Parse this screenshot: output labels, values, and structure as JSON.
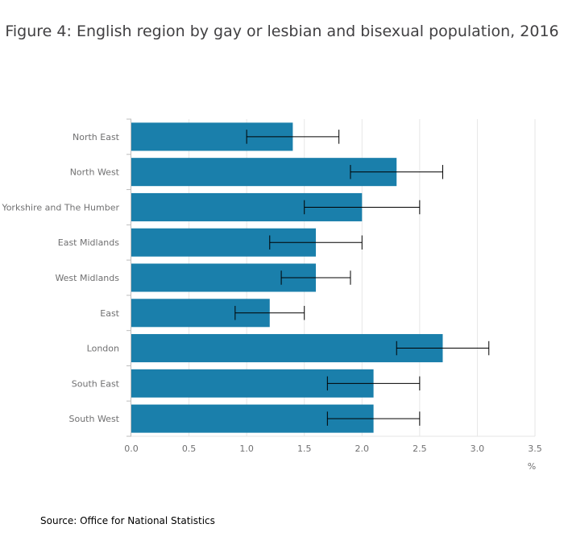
{
  "title": "Figure 4: English region by gay or lesbian and bisexual population, 2016",
  "source": "Source: Office for National Statistics",
  "chart_data": {
    "type": "bar",
    "orientation": "horizontal",
    "categories": [
      "North East",
      "North West",
      "Yorkshire and The Humber",
      "East Midlands",
      "West Midlands",
      "East",
      "London",
      "South East",
      "South West"
    ],
    "values": [
      1.4,
      2.3,
      2.0,
      1.6,
      1.6,
      1.2,
      2.7,
      2.1,
      2.1
    ],
    "error_low": [
      1.0,
      1.9,
      1.5,
      1.2,
      1.3,
      0.9,
      2.3,
      1.7,
      1.7
    ],
    "error_high": [
      1.8,
      2.7,
      2.5,
      2.0,
      1.9,
      1.5,
      3.1,
      2.5,
      2.5
    ],
    "xlim": [
      0,
      3.5
    ],
    "xticks": [
      "0.0",
      "0.5",
      "1.0",
      "1.5",
      "2.0",
      "2.5",
      "3.0",
      "3.5"
    ],
    "xunit": "%",
    "grid": "vertical",
    "bar_color": "#1a7fab",
    "error_color": "#000000"
  }
}
